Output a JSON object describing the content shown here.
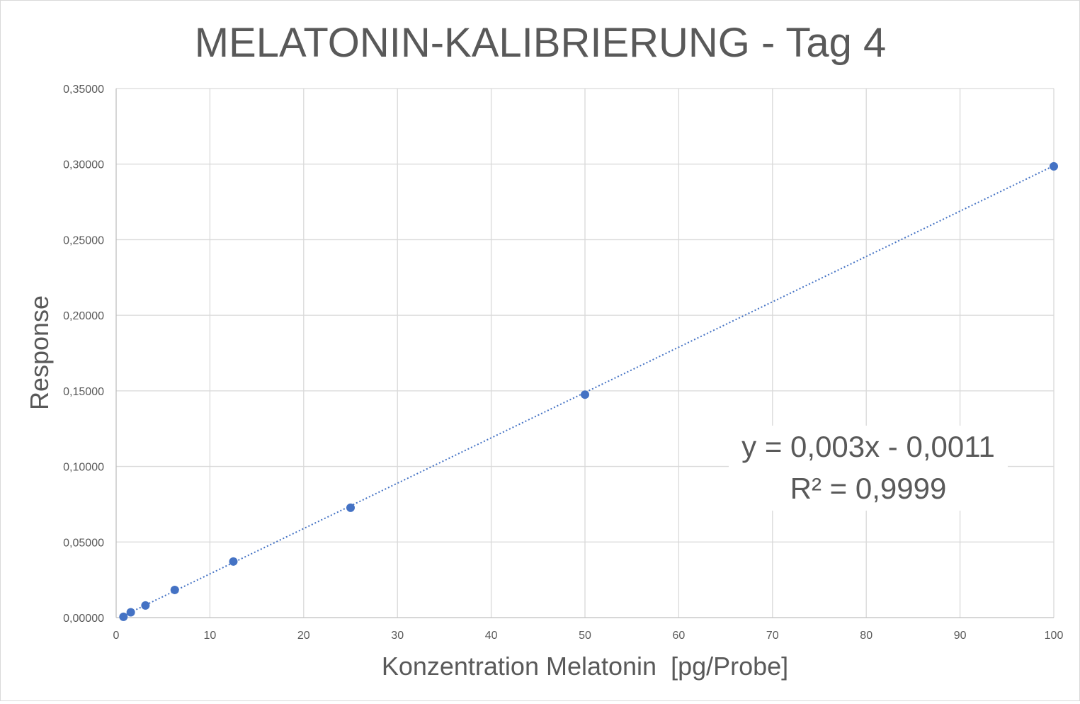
{
  "chart_data": {
    "type": "scatter",
    "title": "MELATONIN-KALIBRIERUNG - Tag 4",
    "xlabel": "Konzentration Melatonin  [pg/Probe]",
    "ylabel": "Response",
    "xlim": [
      0,
      100
    ],
    "ylim": [
      0,
      0.35
    ],
    "x_ticks": [
      "0",
      "10",
      "20",
      "30",
      "40",
      "50",
      "60",
      "70",
      "80",
      "90",
      "100"
    ],
    "y_ticks": [
      "0,00000",
      "0,05000",
      "0,10000",
      "0,15000",
      "0,20000",
      "0,25000",
      "0,30000",
      "0,35000"
    ],
    "grid": true,
    "legend": "none",
    "series": [
      {
        "x": [
          0.78,
          1.56,
          3.125,
          6.25,
          12.5,
          25,
          50,
          100
        ],
        "y": [
          0.0005,
          0.0035,
          0.008,
          0.0183,
          0.0371,
          0.0727,
          0.1475,
          0.2985
        ],
        "color": "#4472C4"
      }
    ],
    "trendline": {
      "type": "linear",
      "slope": 0.003,
      "intercept": -0.0011,
      "style": "dotted",
      "color": "#4472C4",
      "equation_label": "y = 0,003x - 0,0011",
      "r2_label": "R² = 0,9999"
    }
  }
}
